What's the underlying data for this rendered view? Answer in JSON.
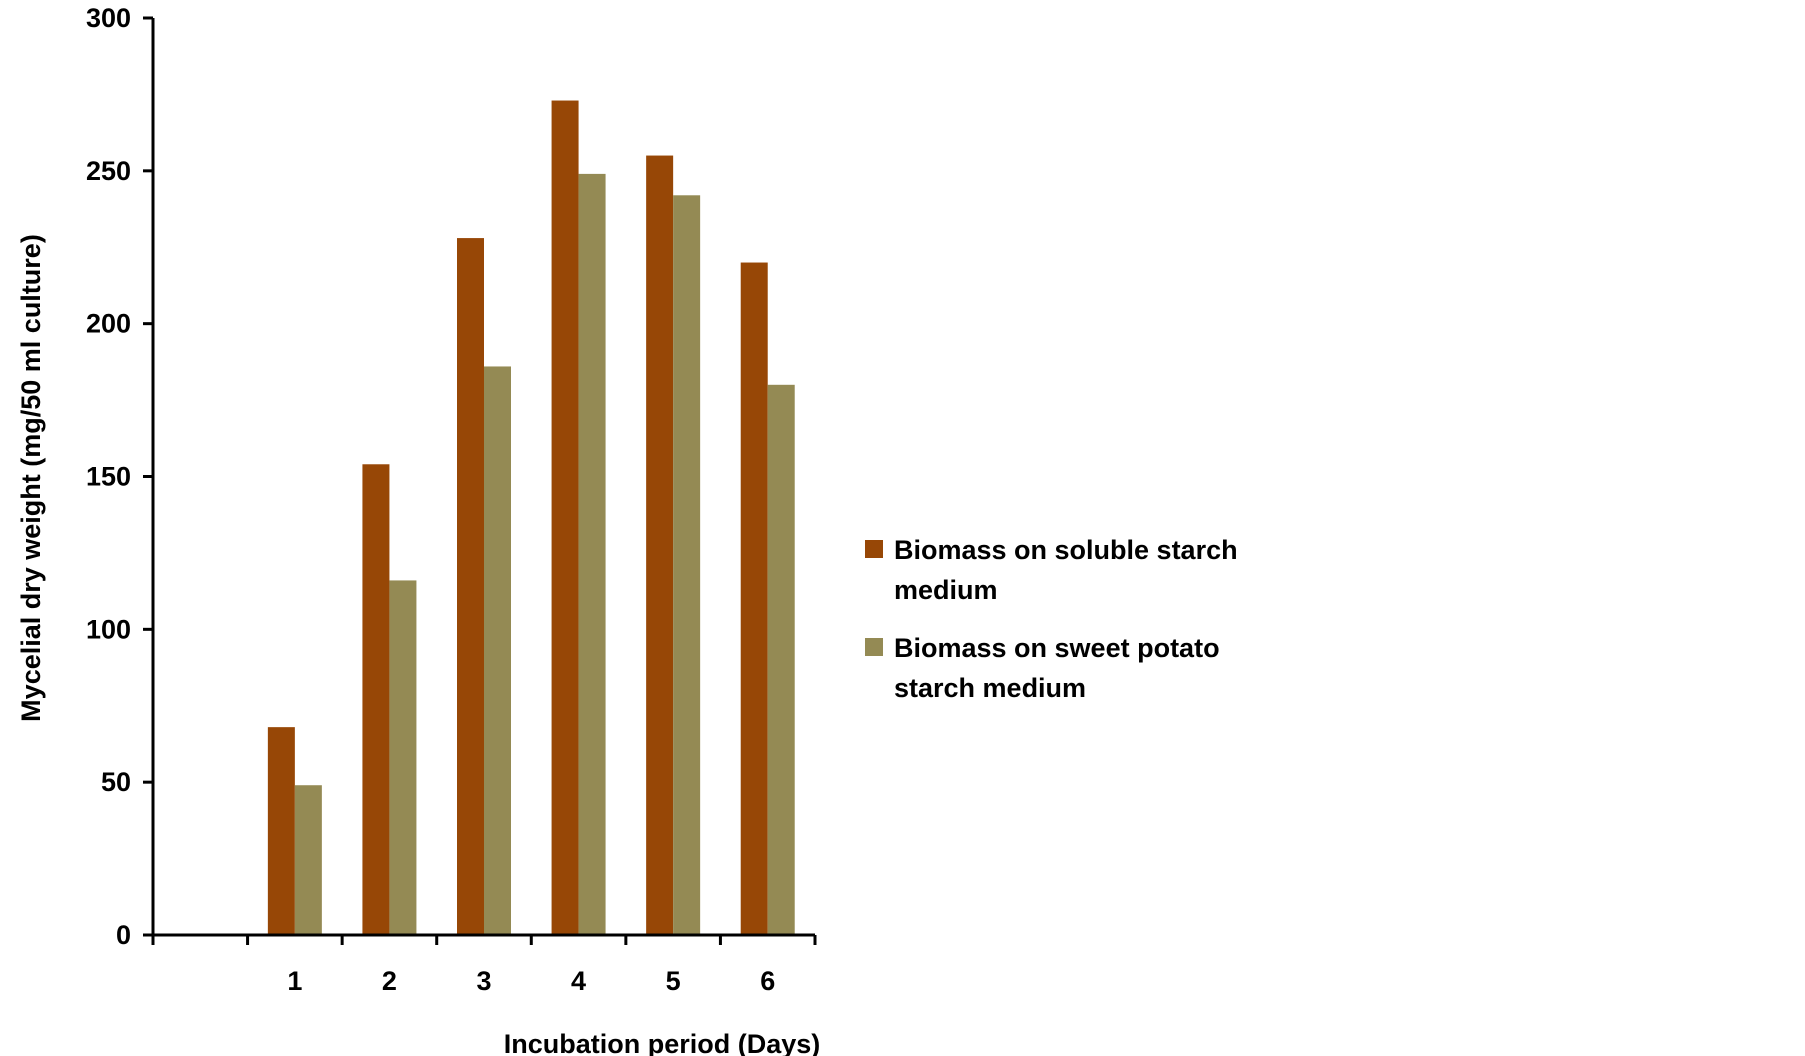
{
  "chart_data": {
    "type": "bar",
    "title": "",
    "xlabel": "Incubation period (Days)",
    "ylabel": "Mycelial dry weight (mg/50 ml culture)",
    "categories": [
      "",
      "1",
      "2",
      "3",
      "4",
      "5",
      "6"
    ],
    "ylim": [
      0,
      300
    ],
    "yticks": [
      0,
      50,
      100,
      150,
      200,
      250,
      300
    ],
    "grid": false,
    "legend_position": "right",
    "series": [
      {
        "name": "Biomass on soluble starch medium",
        "name_lines": [
          "Biomass on soluble starch",
          "medium"
        ],
        "color": "#974706",
        "values": [
          null,
          68,
          154,
          228,
          273,
          255,
          220
        ]
      },
      {
        "name": "Biomass on sweet potato starch medium",
        "name_lines": [
          "Biomass on sweet potato",
          "starch medium"
        ],
        "color": "#948A54",
        "values": [
          null,
          49,
          116,
          186,
          249,
          242,
          180
        ]
      }
    ]
  }
}
